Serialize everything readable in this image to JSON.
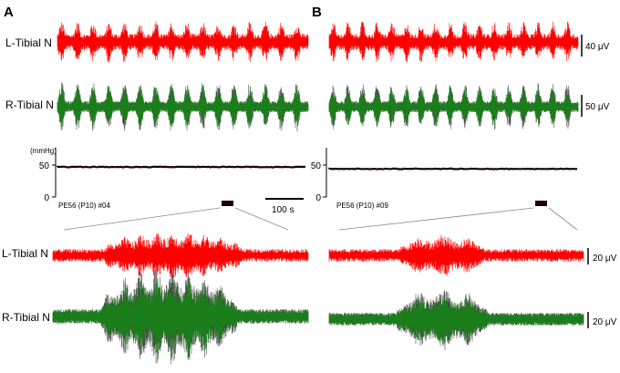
{
  "chart_data": {
    "type": "line",
    "description_visible": false,
    "panels": [
      {
        "letter": "A",
        "recording_id": "PE56 (P10) #04",
        "channels": [
          {
            "label": "L-Tibial N",
            "color": "#ff0000"
          },
          {
            "label": "R-Tibial N",
            "color": "#1a7f1a"
          }
        ],
        "pressure": {
          "unit": "(mmHg)",
          "ticks": [
            {
              "value": 50,
              "label": "50"
            },
            {
              "value": 0,
              "label": "0"
            }
          ],
          "trace_value": 47,
          "ylim": [
            0,
            60
          ]
        },
        "time_scale_label": "100 s",
        "bursts_top": 16,
        "bursts_expanded": 16
      },
      {
        "letter": "B",
        "recording_id": "PE56 (P10) #09",
        "channels": [
          {
            "label": "L-Tibial N",
            "color": "#ff0000"
          },
          {
            "label": "R-Tibial N",
            "color": "#1a7f1a"
          }
        ],
        "pressure": {
          "unit": "",
          "ticks": [
            {
              "value": 50,
              "label": "50"
            },
            {
              "value": 0,
              "label": "0"
            }
          ],
          "trace_value": 44,
          "ylim": [
            0,
            60
          ]
        },
        "time_scale_label": "",
        "bursts_top": 17,
        "bursts_expanded": 10
      }
    ],
    "amplitude_scales": {
      "top_left": "40 μV",
      "top_right": "50 μV",
      "bottom_left": "20 μV",
      "bottom_right": "20 μV"
    },
    "colors": {
      "left": "#ff0000",
      "right": "#1a7f1a",
      "right_dark": "#4a4a4a"
    }
  }
}
